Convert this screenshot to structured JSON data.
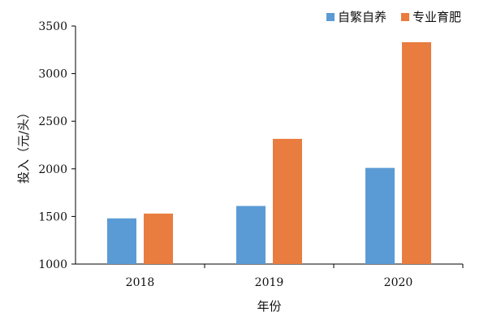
{
  "chart_data": {
    "type": "bar",
    "categories": [
      "2018",
      "2019",
      "2020"
    ],
    "series": [
      {
        "name": "自繁自养",
        "color": "#5b9bd5",
        "values": [
          1480,
          1610,
          2010
        ]
      },
      {
        "name": "专业育肥",
        "color": "#e97c3f",
        "values": [
          1530,
          2315,
          3330
        ]
      }
    ],
    "xlabel": "年份",
    "ylabel": "投入（元/头）",
    "ylim": [
      1000,
      3500
    ],
    "yticks": [
      1000,
      1500,
      2000,
      2500,
      3000,
      3500
    ],
    "grid": false,
    "legend_position": "top-right"
  }
}
